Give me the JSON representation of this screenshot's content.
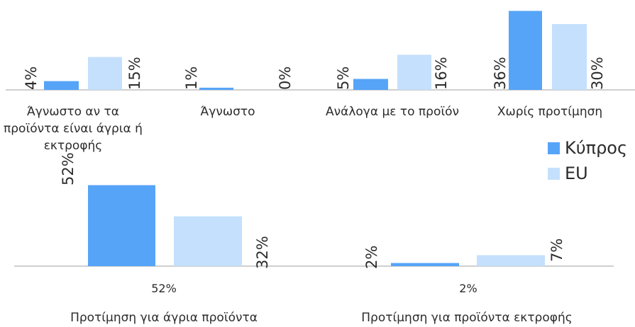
{
  "chart_data": {
    "type": "bar",
    "series": [
      {
        "name": "Κύπρος",
        "color": "#56a4f8"
      },
      {
        "name": "EU",
        "color": "#c4e0fc"
      }
    ],
    "legend": {
      "placement": "right"
    },
    "panels": [
      {
        "categories": [
          {
            "label": [
              "Άγνωστο αν τα",
              "προϊόντα είναι άγρια ή",
              "εκτροφής"
            ],
            "values": [
              4,
              15
            ]
          },
          {
            "label": [
              "Άγνωστο"
            ],
            "values": [
              1,
              0
            ]
          },
          {
            "label": [
              "Ανάλογα με το προϊόν"
            ],
            "values": [
              5,
              16
            ]
          },
          {
            "label": [
              "Χωρίς προτίμηση"
            ],
            "values": [
              36,
              30
            ]
          }
        ]
      },
      {
        "categories": [
          {
            "label": [
              "Προτίμηση για άγρια προϊόντα"
            ],
            "values": [
              52,
              32
            ],
            "extra_label": "52%"
          },
          {
            "label": [
              "Προτίμηση για προϊόντα εκτροφής"
            ],
            "values": [
              2,
              7
            ],
            "extra_label": "2%"
          }
        ]
      }
    ]
  }
}
